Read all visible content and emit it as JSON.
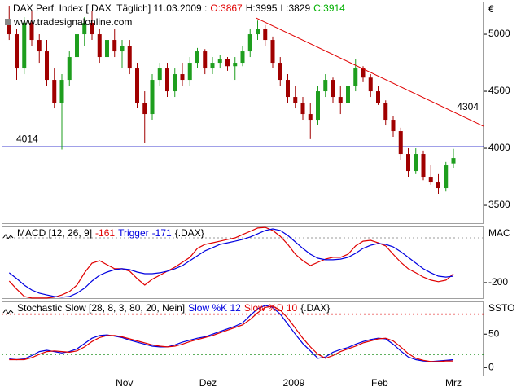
{
  "chart_data": [
    {
      "type": "candlestick",
      "title": "DAX Perf. Index [.DAX  Täglich] 11.03.2009 :",
      "ohlc_labels": [
        {
          "text": "O:3867",
          "color": "#e00000"
        },
        {
          "text": "H:3995",
          "color": "#000000"
        },
        {
          "text": "L:3829",
          "color": "#000000"
        },
        {
          "text": "C:3914",
          "color": "#00b000"
        }
      ],
      "watermark": "www.tradesignalonline.com",
      "currency": "€",
      "up_color": "#1e9e1e",
      "down_color": "#a00000",
      "xlim": [
        -1,
        63
      ],
      "ylim": [
        3336,
        5286
      ],
      "yticks": [
        3500,
        4000,
        4500,
        5000
      ],
      "open": [
        5100,
        5000,
        4700,
        5100,
        4950,
        4850,
        4600,
        4400,
        4600,
        4800,
        5000,
        5100,
        5000,
        4800,
        4950,
        4850,
        4900,
        4700,
        4400,
        4300,
        4600,
        4700,
        4500,
        4650,
        4600,
        4750,
        4850,
        4700,
        4750,
        4780,
        4720,
        4750,
        4850,
        5000,
        5050,
        4950,
        4750,
        4600,
        4450,
        4400,
        4300,
        4250,
        4500,
        4600,
        4450,
        4400,
        4550,
        4700,
        4620,
        4500,
        4400,
        4250,
        4150,
        3950,
        3800,
        3950,
        3750,
        3700,
        3650,
        3867
      ],
      "high": [
        5250,
        5050,
        5150,
        5200,
        5000,
        4950,
        4700,
        4650,
        4850,
        5050,
        5150,
        5200,
        5050,
        5000,
        5050,
        4950,
        4950,
        4750,
        4500,
        4650,
        4750,
        4750,
        4700,
        4750,
        4800,
        4880,
        4870,
        4800,
        4820,
        4800,
        4800,
        4900,
        5050,
        5120,
        5080,
        4980,
        4800,
        4650,
        4550,
        4450,
        4400,
        4550,
        4650,
        4620,
        4550,
        4600,
        4780,
        4720,
        4650,
        4550,
        4420,
        4280,
        4180,
        4000,
        4000,
        3980,
        3850,
        3780,
        3880,
        3995
      ],
      "low": [
        4950,
        4600,
        4650,
        4900,
        4750,
        4550,
        4350,
        3990,
        4550,
        4750,
        4900,
        4950,
        4750,
        4700,
        4800,
        4700,
        4650,
        4350,
        4050,
        4250,
        4550,
        4450,
        4450,
        4550,
        4550,
        4700,
        4650,
        4650,
        4700,
        4680,
        4600,
        4720,
        4800,
        4950,
        4900,
        4700,
        4550,
        4400,
        4350,
        4250,
        4080,
        4200,
        4450,
        4400,
        4300,
        4350,
        4500,
        4580,
        4450,
        4380,
        4200,
        4100,
        3900,
        3750,
        3780,
        3720,
        3680,
        3600,
        3620,
        3829
      ],
      "close": [
        5000,
        4700,
        5100,
        4950,
        4850,
        4600,
        4400,
        4600,
        4800,
        5000,
        5100,
        5000,
        4800,
        4950,
        4850,
        4900,
        4700,
        4400,
        4300,
        4600,
        4700,
        4500,
        4650,
        4600,
        4750,
        4850,
        4700,
        4750,
        4780,
        4720,
        4750,
        4850,
        5000,
        5050,
        4950,
        4750,
        4600,
        4450,
        4400,
        4300,
        4250,
        4500,
        4600,
        4450,
        4400,
        4550,
        4700,
        4620,
        4500,
        4400,
        4250,
        4150,
        3950,
        3800,
        3950,
        3750,
        3700,
        3650,
        3850,
        3914
      ],
      "hline": {
        "value": 4014,
        "label": "4014",
        "color": "#0000c0"
      },
      "trendline": {
        "x": [
          32.8,
          63
        ],
        "y": [
          5143,
          4193
        ],
        "label": "4304",
        "color": "#e00000"
      }
    },
    {
      "type": "line",
      "axis_title": "MAC",
      "symbol": "{.DAX}",
      "xlim": [
        -1,
        63
      ],
      "ylim": [
        -273,
        51
      ],
      "yticks": [
        -200
      ],
      "reference_lines": [
        0
      ],
      "series": [
        {
          "name": "MACD [12, 26, 9]",
          "name_color": "#000000",
          "last_label": "-161",
          "color": "#e00000",
          "values": [
            -193,
            -229,
            -262,
            -269,
            -269,
            -269,
            -265,
            -255,
            -240,
            -211,
            -156,
            -113,
            -102,
            -120,
            -138,
            -138,
            -149,
            -182,
            -211,
            -185,
            -167,
            -149,
            -131,
            -109,
            -87,
            -47,
            -29,
            -22,
            -15,
            -7,
            0,
            15,
            29,
            44,
            47,
            33,
            7,
            -29,
            -73,
            -102,
            -124,
            -109,
            -95,
            -87,
            -87,
            -73,
            -36,
            -15,
            -11,
            -22,
            -36,
            -73,
            -109,
            -138,
            -156,
            -175,
            -189,
            -196,
            -189,
            -161
          ]
        },
        {
          "name": "Trigger",
          "name_color": "#0000e0",
          "last_label": "-171",
          "color": "#0000e0",
          "values": [
            -156,
            -182,
            -211,
            -233,
            -247,
            -255,
            -262,
            -265,
            -262,
            -247,
            -225,
            -193,
            -167,
            -153,
            -142,
            -138,
            -142,
            -153,
            -160,
            -160,
            -156,
            -149,
            -138,
            -124,
            -102,
            -80,
            -58,
            -44,
            -29,
            -22,
            -15,
            -7,
            4,
            18,
            33,
            40,
            33,
            11,
            -18,
            -47,
            -73,
            -91,
            -98,
            -98,
            -95,
            -87,
            -69,
            -47,
            -33,
            -25,
            -29,
            -40,
            -62,
            -87,
            -113,
            -138,
            -156,
            -171,
            -175,
            -171
          ]
        }
      ]
    },
    {
      "type": "line",
      "title": "Stochastic Slow [28, 8, 3, 80, 20, Nein]",
      "axis_title": "SSTO",
      "symbol": "{.DAX}",
      "xlim": [
        -1,
        63
      ],
      "ylim": [
        -13,
        99
      ],
      "yticks": [
        0,
        50
      ],
      "reference_lines": [
        {
          "value": 20,
          "color": "#008000"
        },
        {
          "value": 80,
          "color": "#e00000"
        }
      ],
      "xticks": [
        {
          "value": 15.3,
          "label": "Nov"
        },
        {
          "value": 26.4,
          "label": "Dez"
        },
        {
          "value": 37.8,
          "label": "2009"
        },
        {
          "value": 49.2,
          "label": "Feb"
        },
        {
          "value": 59,
          "label": "Mrz"
        }
      ],
      "series": [
        {
          "name": "Slow %K 12",
          "color": "#0000e0",
          "values": [
            13,
            12,
            13,
            18,
            24,
            26,
            24,
            22,
            24,
            28,
            36,
            44,
            48,
            49,
            47,
            45,
            41,
            38,
            35,
            32,
            31,
            31,
            34,
            38,
            41,
            44,
            46,
            50,
            54,
            58,
            62,
            67,
            78,
            88,
            93,
            90,
            80,
            65,
            50,
            36,
            25,
            14,
            16,
            23,
            27,
            30,
            35,
            39,
            42,
            44,
            43,
            35,
            25,
            16,
            12,
            10,
            9,
            10,
            11,
            12
          ]
        },
        {
          "name": "Slow %D 10",
          "color": "#e00000",
          "values": [
            12,
            12,
            12,
            15,
            20,
            24,
            25,
            24,
            23,
            25,
            31,
            39,
            45,
            48,
            48,
            46,
            43,
            40,
            37,
            34,
            32,
            31,
            32,
            35,
            39,
            42,
            45,
            48,
            52,
            56,
            60,
            64,
            72,
            82,
            90,
            92,
            86,
            74,
            59,
            44,
            31,
            20,
            14,
            18,
            24,
            28,
            32,
            37,
            40,
            43,
            44,
            40,
            31,
            21,
            14,
            11,
            9,
            9,
            10,
            10
          ]
        }
      ]
    }
  ]
}
